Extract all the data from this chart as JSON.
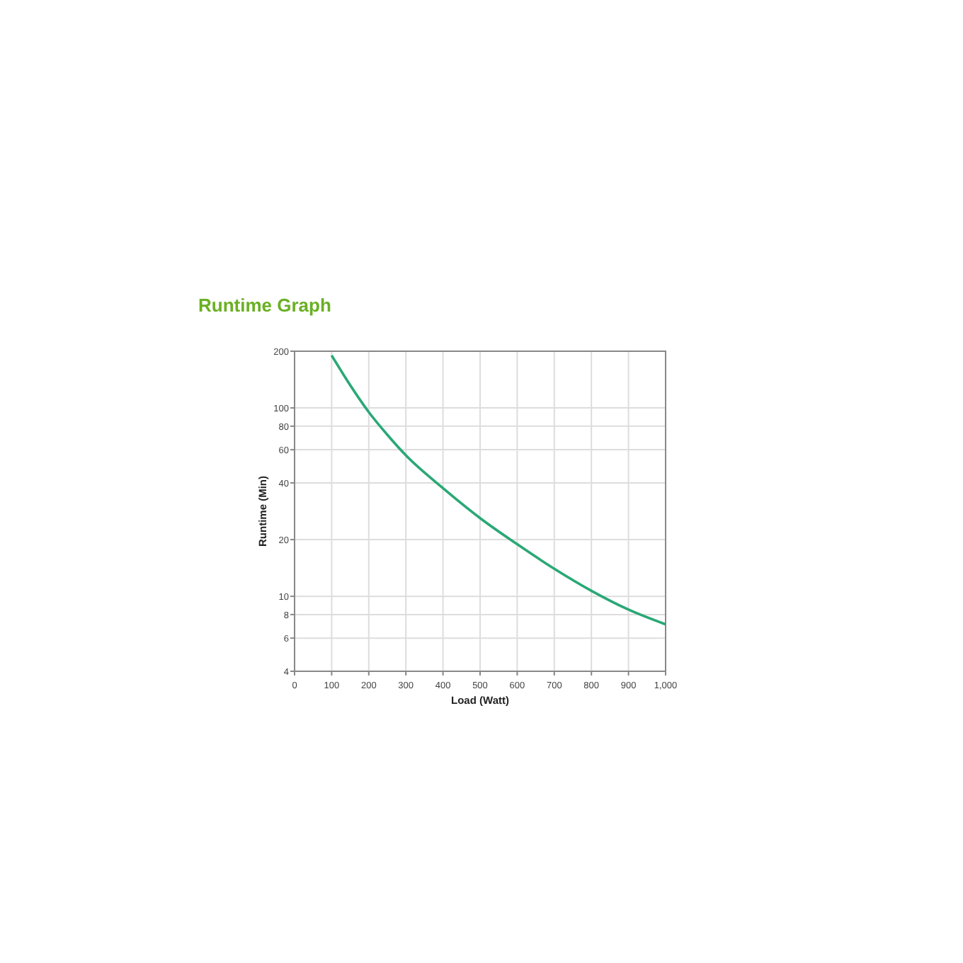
{
  "chart_data": {
    "type": "line",
    "title": "Runtime Graph",
    "xlabel": "Load (Watt)",
    "ylabel": "Runtime (Min)",
    "x": [
      100,
      150,
      200,
      250,
      300,
      400,
      500,
      600,
      700,
      800,
      900,
      1000
    ],
    "series": [
      {
        "color": "#2aa876",
        "values": [
          190,
          132,
          95,
          72,
          56,
          37.5,
          26,
          18.9,
          14,
          10.7,
          8.5,
          7.1
        ]
      }
    ],
    "xlim": [
      0,
      1000
    ],
    "xticks": [
      0,
      100,
      200,
      300,
      400,
      500,
      600,
      700,
      800,
      900,
      {
        "value": 1000,
        "label": "1,000"
      }
    ],
    "ylim": [
      4,
      200
    ],
    "yticks": [
      4,
      6,
      8,
      10,
      20,
      40,
      60,
      80,
      100,
      200
    ],
    "log": "y",
    "grid": true,
    "marker": "none",
    "line_style": "solid"
  }
}
